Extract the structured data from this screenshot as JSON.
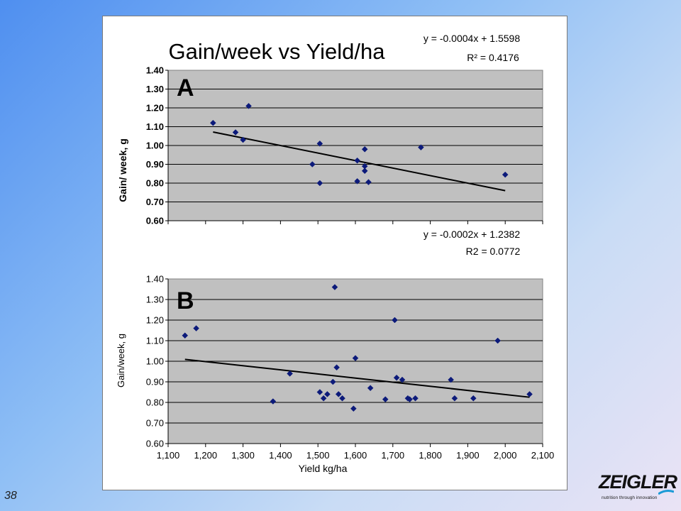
{
  "slide_number": "38",
  "logo": {
    "name": "ZEIGLER",
    "tagline": "nutrition through innovation"
  },
  "colors": {
    "plot_bg": "#c0c0c0",
    "marker": "#0c1a7a",
    "trend": "#000000",
    "panel_border": "#7a7a7a"
  },
  "chart_data": [
    {
      "type": "scatter",
      "panel_label": "A",
      "title": "Gain/week vs Yield/ha",
      "ylabel": "Gain/ week, g",
      "xlabel": "",
      "equation": "y = -0.0004x + 1.5598",
      "r2": "R² = 0.4176",
      "xlim": [
        1100,
        2100
      ],
      "ylim": [
        0.6,
        1.4
      ],
      "yticks": [
        "0.60",
        "0.70",
        "0.80",
        "0.90",
        "1.00",
        "1.10",
        "1.20",
        "1.30",
        "1.40"
      ],
      "xticks": [],
      "grid": true,
      "trendline": {
        "slope": -0.0004,
        "intercept": 1.5598,
        "x_range": [
          1220,
          2000
        ]
      },
      "points": [
        [
          1220,
          1.12
        ],
        [
          1280,
          1.07
        ],
        [
          1300,
          1.03
        ],
        [
          1315,
          1.21
        ],
        [
          1485,
          0.9
        ],
        [
          1505,
          1.01
        ],
        [
          1505,
          0.8
        ],
        [
          1605,
          0.81
        ],
        [
          1605,
          0.92
        ],
        [
          1625,
          0.98
        ],
        [
          1625,
          0.89
        ],
        [
          1625,
          0.865
        ],
        [
          1635,
          0.805
        ],
        [
          1775,
          0.99
        ],
        [
          2000,
          0.845
        ]
      ]
    },
    {
      "type": "scatter",
      "panel_label": "B",
      "title": "",
      "ylabel": "Gain/week, g",
      "xlabel": "Yield kg/ha",
      "equation": "y = -0.0002x + 1.2382",
      "r2": "R2 = 0.0772",
      "xlim": [
        1100,
        2100
      ],
      "ylim": [
        0.6,
        1.4
      ],
      "yticks": [
        "0.60",
        "0.70",
        "0.80",
        "0.90",
        "1.00",
        "1.10",
        "1.20",
        "1.30",
        "1.40"
      ],
      "xticks": [
        "1,100",
        "1,200",
        "1,300",
        "1,400",
        "1,500",
        "1,600",
        "1,700",
        "1,800",
        "1,900",
        "2,000",
        "2,100"
      ],
      "grid": true,
      "trendline": {
        "slope": -0.0002,
        "intercept": 1.2382,
        "x_range": [
          1145,
          2065
        ]
      },
      "points": [
        [
          1145,
          1.125
        ],
        [
          1175,
          1.16
        ],
        [
          1380,
          0.805
        ],
        [
          1425,
          0.94
        ],
        [
          1505,
          0.85
        ],
        [
          1515,
          0.82
        ],
        [
          1525,
          0.84
        ],
        [
          1540,
          0.9
        ],
        [
          1545,
          1.36
        ],
        [
          1550,
          0.97
        ],
        [
          1555,
          0.84
        ],
        [
          1565,
          0.82
        ],
        [
          1595,
          0.77
        ],
        [
          1600,
          1.015
        ],
        [
          1640,
          0.87
        ],
        [
          1680,
          0.815
        ],
        [
          1705,
          1.2
        ],
        [
          1710,
          0.92
        ],
        [
          1725,
          0.91
        ],
        [
          1740,
          0.82
        ],
        [
          1745,
          0.815
        ],
        [
          1760,
          0.82
        ],
        [
          1855,
          0.91
        ],
        [
          1865,
          0.82
        ],
        [
          1915,
          0.82
        ],
        [
          1980,
          1.1
        ],
        [
          2065,
          0.84
        ]
      ]
    }
  ]
}
